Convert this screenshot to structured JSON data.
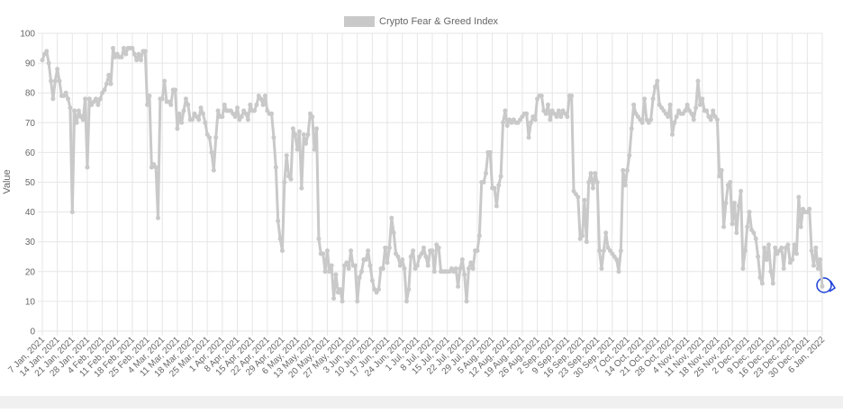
{
  "chart_data": {
    "type": "line",
    "y_label": "Value",
    "legend": "top",
    "grid": true,
    "ylim": [
      0,
      100
    ],
    "yticks": [
      0,
      10,
      20,
      30,
      40,
      50,
      60,
      70,
      80,
      90,
      100
    ],
    "categories": [
      "7 Jan, 2021",
      null,
      null,
      null,
      null,
      null,
      null,
      "14 Jan, 2021",
      null,
      null,
      null,
      null,
      null,
      null,
      "21 Jan, 2021",
      null,
      null,
      null,
      null,
      null,
      null,
      "28 Jan, 2021",
      null,
      null,
      null,
      null,
      null,
      null,
      "4 Feb, 2021",
      null,
      null,
      null,
      null,
      null,
      null,
      "11 Feb, 2021",
      null,
      null,
      null,
      null,
      null,
      null,
      "18 Feb, 2021",
      null,
      null,
      null,
      null,
      null,
      null,
      "25 Feb, 2021",
      null,
      null,
      null,
      null,
      null,
      null,
      "4 Mar, 2021",
      null,
      null,
      null,
      null,
      null,
      null,
      "11 Mar, 2021",
      null,
      null,
      null,
      null,
      null,
      null,
      "18 Mar, 2021",
      null,
      null,
      null,
      null,
      null,
      null,
      "25 Mar, 2021",
      null,
      null,
      null,
      null,
      null,
      null,
      "1 Apr, 2021",
      null,
      null,
      null,
      null,
      null,
      null,
      "8 Apr, 2021",
      null,
      null,
      null,
      null,
      null,
      null,
      "15 Apr, 2021",
      null,
      null,
      null,
      null,
      null,
      null,
      "22 Apr, 2021",
      null,
      null,
      null,
      null,
      null,
      null,
      "29 Apr, 2021",
      null,
      null,
      null,
      null,
      null,
      null,
      "6 May, 2021",
      null,
      null,
      null,
      null,
      null,
      null,
      "13 May, 2021",
      null,
      null,
      null,
      null,
      null,
      null,
      "20 May, 2021",
      null,
      null,
      null,
      null,
      null,
      null,
      "27 May, 2021",
      null,
      null,
      null,
      null,
      null,
      null,
      "3 Jun, 2021",
      null,
      null,
      null,
      null,
      null,
      null,
      "10 Jun, 2021",
      null,
      null,
      null,
      null,
      null,
      null,
      "17 Jun, 2021",
      null,
      null,
      null,
      null,
      null,
      null,
      "24 Jun, 2021",
      null,
      null,
      null,
      null,
      null,
      null,
      "1 Jul, 2021",
      null,
      null,
      null,
      null,
      null,
      null,
      "8 Jul, 2021",
      null,
      null,
      null,
      null,
      null,
      null,
      "15 Jul, 2021",
      null,
      null,
      null,
      null,
      null,
      null,
      "22 Jul, 2021",
      null,
      null,
      null,
      null,
      null,
      null,
      "29 Jul, 2021",
      null,
      null,
      null,
      null,
      null,
      null,
      "5 Aug, 2021",
      null,
      null,
      null,
      null,
      null,
      null,
      "12 Aug, 2021",
      null,
      null,
      null,
      null,
      null,
      null,
      "19 Aug, 2021",
      null,
      null,
      null,
      null,
      null,
      null,
      "26 Aug, 2021",
      null,
      null,
      null,
      null,
      null,
      null,
      "2 Sep, 2021",
      null,
      null,
      null,
      null,
      null,
      null,
      "9 Sep, 2021",
      null,
      null,
      null,
      null,
      null,
      null,
      "16 Sep, 2021",
      null,
      null,
      null,
      null,
      null,
      null,
      "23 Sep, 2021",
      null,
      null,
      null,
      null,
      null,
      null,
      "30 Sep, 2021",
      null,
      null,
      null,
      null,
      null,
      null,
      "7 Oct, 2021",
      null,
      null,
      null,
      null,
      null,
      null,
      "14 Oct, 2021",
      null,
      null,
      null,
      null,
      null,
      null,
      "21 Oct, 2021",
      null,
      null,
      null,
      null,
      null,
      null,
      "28 Oct, 2021",
      null,
      null,
      null,
      null,
      null,
      null,
      "4 Nov, 2021",
      null,
      null,
      null,
      null,
      null,
      null,
      "11 Nov, 2021",
      null,
      null,
      null,
      null,
      null,
      null,
      "18 Nov, 2021",
      null,
      null,
      null,
      null,
      null,
      null,
      "25 Nov, 2021",
      null,
      null,
      null,
      null,
      null,
      null,
      "2 Dec, 2021",
      null,
      null,
      null,
      null,
      null,
      null,
      "9 Dec, 2021",
      null,
      null,
      null,
      null,
      null,
      null,
      "16 Dec, 2021",
      null,
      null,
      null,
      null,
      null,
      null,
      "23 Dec, 2021",
      null,
      null,
      null,
      null,
      null,
      null,
      "30 Dec, 2021",
      null,
      null,
      null,
      null,
      null,
      null,
      "6 Jan, 2022"
    ],
    "series": [
      {
        "name": "Crypto Fear & Greed Index",
        "color": "#c9c9c9",
        "values": [
          91,
          93,
          94,
          90,
          84,
          78,
          84,
          88,
          84,
          79,
          79,
          80,
          78,
          75,
          40,
          74,
          70,
          74,
          72,
          71,
          78,
          55,
          78,
          76,
          77,
          78,
          76,
          78,
          80,
          81,
          83,
          86,
          83,
          95,
          92,
          93,
          92,
          92,
          95,
          93,
          95,
          95,
          95,
          93,
          91,
          93,
          91,
          94,
          94,
          76,
          79,
          55,
          56,
          55,
          38,
          78,
          78,
          84,
          77,
          77,
          76,
          81,
          81,
          68,
          73,
          70,
          74,
          78,
          76,
          71,
          71,
          73,
          72,
          71,
          75,
          73,
          70,
          66,
          65,
          60,
          54,
          65,
          74,
          72,
          72,
          76,
          74,
          74,
          74,
          73,
          72,
          75,
          71,
          72,
          74,
          73,
          71,
          76,
          74,
          74,
          76,
          79,
          78,
          76,
          79,
          74,
          73,
          73,
          65,
          55,
          37,
          31,
          27,
          50,
          59,
          52,
          51,
          68,
          66,
          61,
          67,
          48,
          66,
          63,
          66,
          73,
          72,
          61,
          68,
          31,
          26,
          26,
          20,
          27,
          20,
          22,
          11,
          19,
          13,
          14,
          10,
          22,
          23,
          21,
          27,
          22,
          22,
          10,
          18,
          20,
          24,
          24,
          27,
          22,
          17,
          14,
          13,
          14,
          21,
          21,
          28,
          23,
          28,
          38,
          33,
          26,
          25,
          22,
          24,
          21,
          10,
          14,
          25,
          27,
          21,
          22,
          25,
          26,
          28,
          25,
          22,
          27,
          27,
          20,
          29,
          28,
          20,
          20,
          20,
          20,
          20,
          21,
          20,
          21,
          15,
          21,
          24,
          19,
          10,
          21,
          23,
          21,
          27,
          27,
          32,
          50,
          50,
          53,
          60,
          60,
          48,
          48,
          42,
          49,
          52,
          70,
          74,
          69,
          71,
          70,
          71,
          70,
          70,
          71,
          72,
          73,
          73,
          65,
          70,
          72,
          71,
          78,
          79,
          79,
          74,
          73,
          76,
          71,
          74,
          73,
          72,
          74,
          72,
          74,
          73,
          72,
          79,
          79,
          47,
          46,
          45,
          31,
          32,
          44,
          30,
          50,
          53,
          48,
          53,
          50,
          27,
          21,
          27,
          33,
          28,
          27,
          26,
          25,
          24,
          20,
          27,
          54,
          49,
          54,
          59,
          68,
          76,
          73,
          72,
          71,
          70,
          78,
          71,
          70,
          71,
          78,
          82,
          84,
          76,
          75,
          74,
          73,
          72,
          76,
          66,
          70,
          72,
          74,
          73,
          73,
          74,
          76,
          74,
          73,
          71,
          75,
          84,
          76,
          78,
          74,
          74,
          72,
          71,
          74,
          72,
          71,
          52,
          54,
          35,
          43,
          49,
          50,
          36,
          43,
          33,
          42,
          47,
          21,
          27,
          35,
          40,
          34,
          33,
          31,
          25,
          18,
          16,
          28,
          24,
          29,
          20,
          16,
          28,
          26,
          27,
          28,
          21,
          28,
          29,
          23,
          24,
          29,
          26,
          45,
          35,
          41,
          40,
          40,
          41,
          27,
          22,
          28,
          21,
          24,
          15
        ]
      }
    ]
  }
}
